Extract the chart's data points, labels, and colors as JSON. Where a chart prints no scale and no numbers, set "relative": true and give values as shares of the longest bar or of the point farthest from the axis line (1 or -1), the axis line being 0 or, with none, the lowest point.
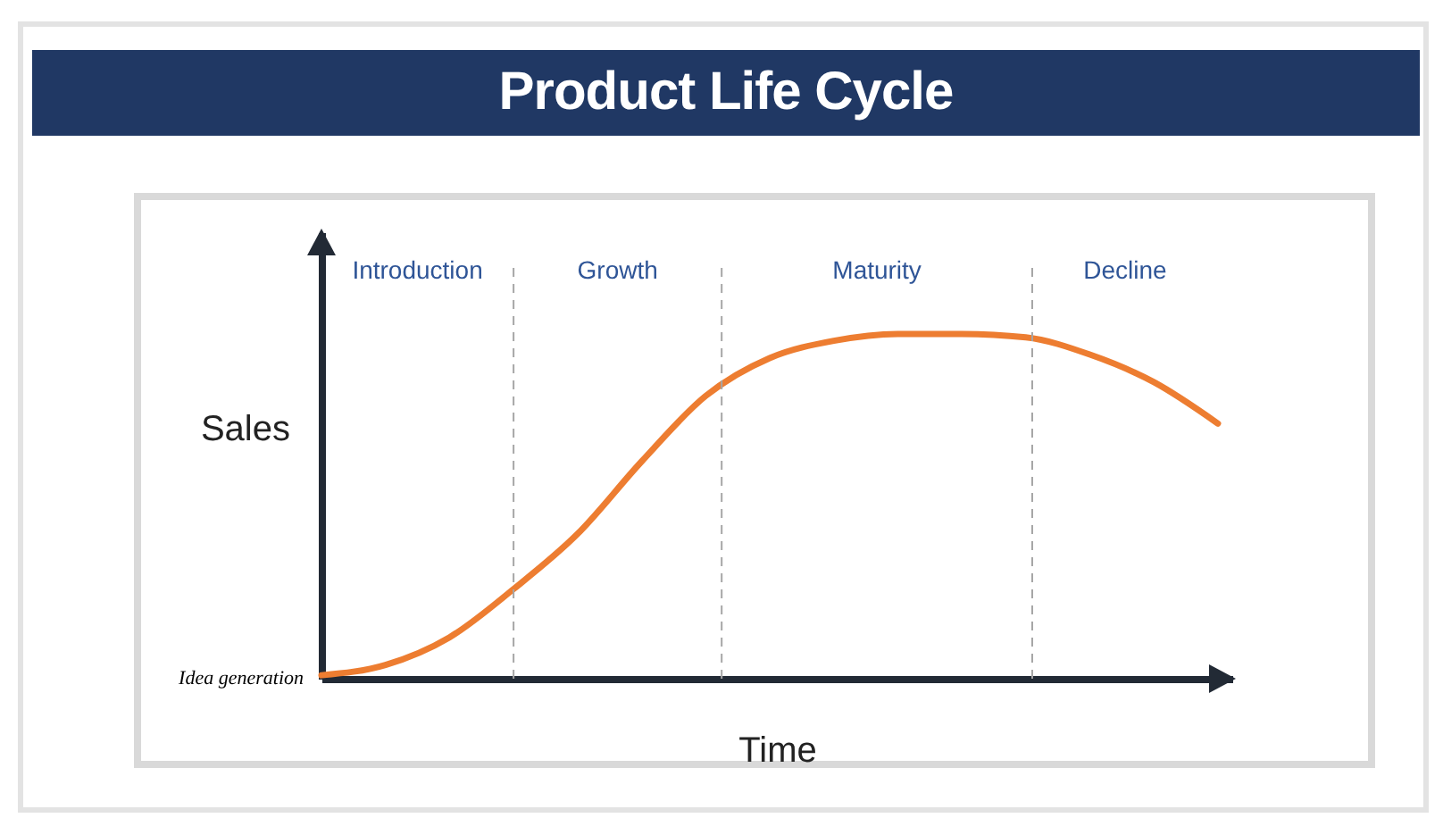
{
  "chart_data": {
    "type": "line",
    "title": "Product Life Cycle",
    "xlabel": "Time",
    "ylabel": "Sales",
    "relative": true,
    "categories": [
      null,
      null,
      null,
      null,
      null,
      null,
      null,
      null,
      null,
      null,
      null,
      null,
      null,
      null,
      null
    ],
    "series": [
      {
        "color": "#ed7d31",
        "values": [
          0.01,
          0.04,
          0.12,
          0.26,
          0.42,
          0.63,
          0.82,
          0.93,
          0.98,
          1,
          1,
          0.99,
          0.94,
          0.86,
          0.74
        ]
      }
    ],
    "annotations": [
      "Introduction",
      "Growth",
      "Maturity",
      "Decline",
      "Idea generation"
    ]
  }
}
